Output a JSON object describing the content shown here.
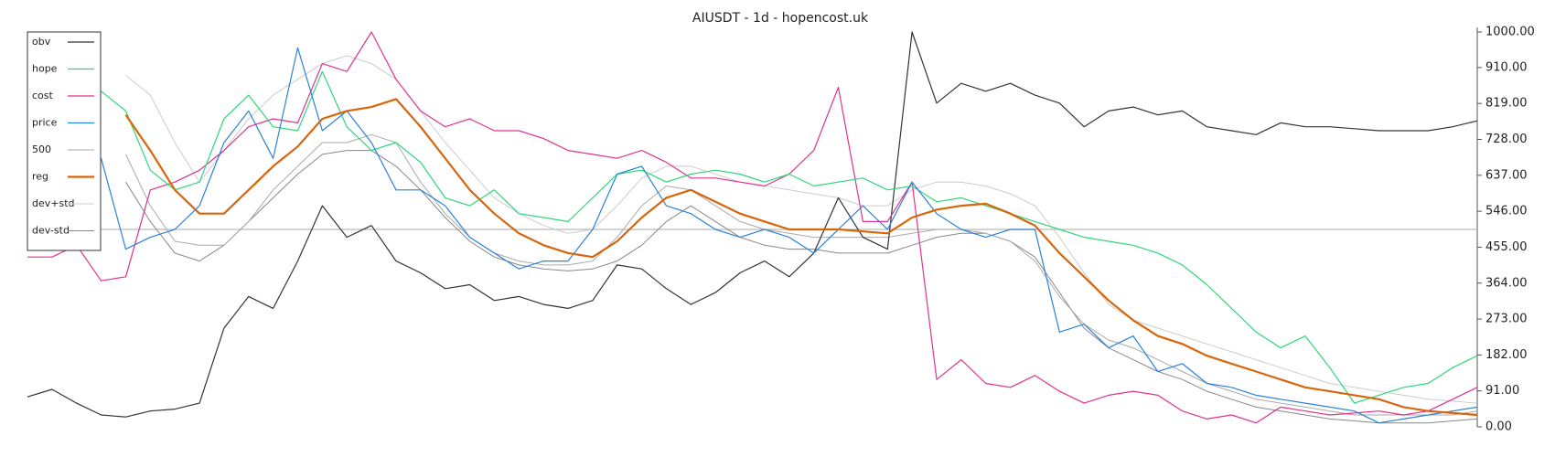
{
  "chart_data": {
    "type": "line",
    "title": "AIUSDT - 1d - hopencost.uk",
    "ylim": [
      0,
      1000
    ],
    "yticks": [
      {
        "value": 1000,
        "label": "1000.00"
      },
      {
        "value": 910,
        "label": "910.00"
      },
      {
        "value": 819,
        "label": "819.00"
      },
      {
        "value": 728,
        "label": "728.00"
      },
      {
        "value": 637,
        "label": "637.00"
      },
      {
        "value": 546,
        "label": "546.00"
      },
      {
        "value": 455,
        "label": "455.00"
      },
      {
        "value": 364,
        "label": "364.00"
      },
      {
        "value": 273,
        "label": "273.00"
      },
      {
        "value": 182,
        "label": "182.00"
      },
      {
        "value": 91,
        "label": "91.00"
      },
      {
        "value": 0,
        "label": "0.00"
      }
    ],
    "hline": 500,
    "hline_color": "#bbbbbb",
    "legend": "upper left",
    "y_axis_side": "right",
    "series": [
      {
        "name": "obv",
        "color": "#333333",
        "width": 1.2,
        "values": [
          76,
          95,
          60,
          30,
          25,
          40,
          45,
          60,
          250,
          330,
          300,
          420,
          560,
          480,
          510,
          420,
          390,
          350,
          360,
          320,
          330,
          310,
          300,
          320,
          410,
          400,
          350,
          310,
          340,
          390,
          420,
          380,
          440,
          580,
          480,
          450,
          1000,
          820,
          870,
          850,
          870,
          840,
          820,
          760,
          800,
          810,
          790,
          800,
          760,
          750,
          740,
          770,
          760,
          760,
          755,
          750,
          750,
          750,
          760,
          775
        ]
      },
      {
        "name": "hope",
        "color": "#2ed87a",
        "width": 1.2,
        "values": [
          null,
          null,
          null,
          850,
          800,
          650,
          600,
          620,
          780,
          840,
          760,
          750,
          900,
          760,
          700,
          720,
          670,
          580,
          560,
          600,
          540,
          530,
          520,
          580,
          640,
          650,
          620,
          640,
          650,
          640,
          620,
          640,
          610,
          620,
          630,
          600,
          610,
          570,
          580,
          560,
          540,
          520,
          500,
          480,
          470,
          460,
          440,
          410,
          360,
          300,
          240,
          200,
          230,
          150,
          60,
          80,
          100,
          110,
          150,
          180
        ]
      },
      {
        "name": "cost",
        "color": "#e0338f",
        "width": 1.2,
        "values": [
          430,
          430,
          460,
          370,
          380,
          600,
          620,
          650,
          700,
          760,
          780,
          770,
          920,
          900,
          1000,
          880,
          800,
          760,
          780,
          750,
          750,
          730,
          700,
          690,
          680,
          700,
          670,
          630,
          630,
          620,
          610,
          640,
          700,
          860,
          520,
          520,
          620,
          120,
          170,
          110,
          100,
          130,
          90,
          60,
          80,
          90,
          80,
          40,
          20,
          30,
          10,
          50,
          40,
          30,
          35,
          40,
          30,
          40,
          70,
          100
        ]
      },
      {
        "name": "price",
        "color": "#2b82d9",
        "width": 1.2,
        "values": [
          null,
          null,
          null,
          680,
          450,
          480,
          500,
          560,
          720,
          800,
          680,
          960,
          750,
          800,
          720,
          600,
          600,
          560,
          480,
          440,
          400,
          420,
          420,
          500,
          640,
          660,
          560,
          540,
          500,
          480,
          500,
          480,
          440,
          500,
          560,
          500,
          620,
          540,
          500,
          480,
          500,
          500,
          240,
          260,
          200,
          230,
          140,
          160,
          110,
          100,
          80,
          70,
          60,
          50,
          40,
          10,
          20,
          30,
          40,
          50
        ]
      },
      {
        "name": "500",
        "color": "#aaaaaa",
        "width": 1,
        "values": [
          null,
          null,
          null,
          null,
          690,
          560,
          470,
          460,
          460,
          520,
          600,
          660,
          720,
          720,
          740,
          720,
          620,
          540,
          480,
          440,
          420,
          410,
          410,
          420,
          480,
          560,
          610,
          600,
          560,
          520,
          500,
          490,
          480,
          480,
          480,
          480,
          490,
          500,
          500,
          490,
          470,
          420,
          330,
          260,
          220,
          200,
          170,
          140,
          110,
          90,
          70,
          60,
          50,
          40,
          30,
          30,
          30,
          30,
          30,
          40
        ]
      },
      {
        "name": "reg",
        "color": "#d9650b",
        "width": 2.2,
        "values": [
          null,
          null,
          null,
          null,
          790,
          700,
          600,
          540,
          540,
          600,
          660,
          710,
          780,
          800,
          810,
          830,
          760,
          680,
          600,
          540,
          490,
          460,
          440,
          430,
          470,
          530,
          580,
          600,
          570,
          540,
          520,
          500,
          500,
          500,
          495,
          490,
          530,
          550,
          560,
          565,
          540,
          510,
          440,
          380,
          320,
          270,
          230,
          210,
          180,
          160,
          140,
          120,
          100,
          90,
          80,
          70,
          50,
          40,
          35,
          30
        ]
      },
      {
        "name": "dev+std",
        "color": "#cccccc",
        "width": 1,
        "values": [
          null,
          null,
          null,
          null,
          890,
          840,
          720,
          620,
          700,
          780,
          840,
          880,
          920,
          940,
          920,
          880,
          800,
          720,
          650,
          580,
          540,
          510,
          490,
          500,
          560,
          630,
          660,
          660,
          640,
          620,
          610,
          600,
          590,
          580,
          560,
          560,
          600,
          620,
          620,
          610,
          590,
          560,
          480,
          390,
          310,
          270,
          250,
          230,
          210,
          190,
          170,
          150,
          130,
          110,
          100,
          90,
          80,
          70,
          65,
          60
        ]
      },
      {
        "name": "dev-std",
        "color": "#888888",
        "width": 1,
        "values": [
          null,
          null,
          null,
          null,
          620,
          520,
          440,
          420,
          460,
          520,
          580,
          640,
          690,
          700,
          700,
          660,
          600,
          530,
          470,
          430,
          410,
          400,
          395,
          400,
          420,
          460,
          520,
          560,
          520,
          480,
          460,
          450,
          450,
          440,
          440,
          440,
          460,
          480,
          490,
          490,
          470,
          430,
          340,
          250,
          200,
          170,
          140,
          120,
          90,
          70,
          50,
          40,
          30,
          20,
          15,
          10,
          10,
          10,
          15,
          20
        ]
      }
    ]
  }
}
